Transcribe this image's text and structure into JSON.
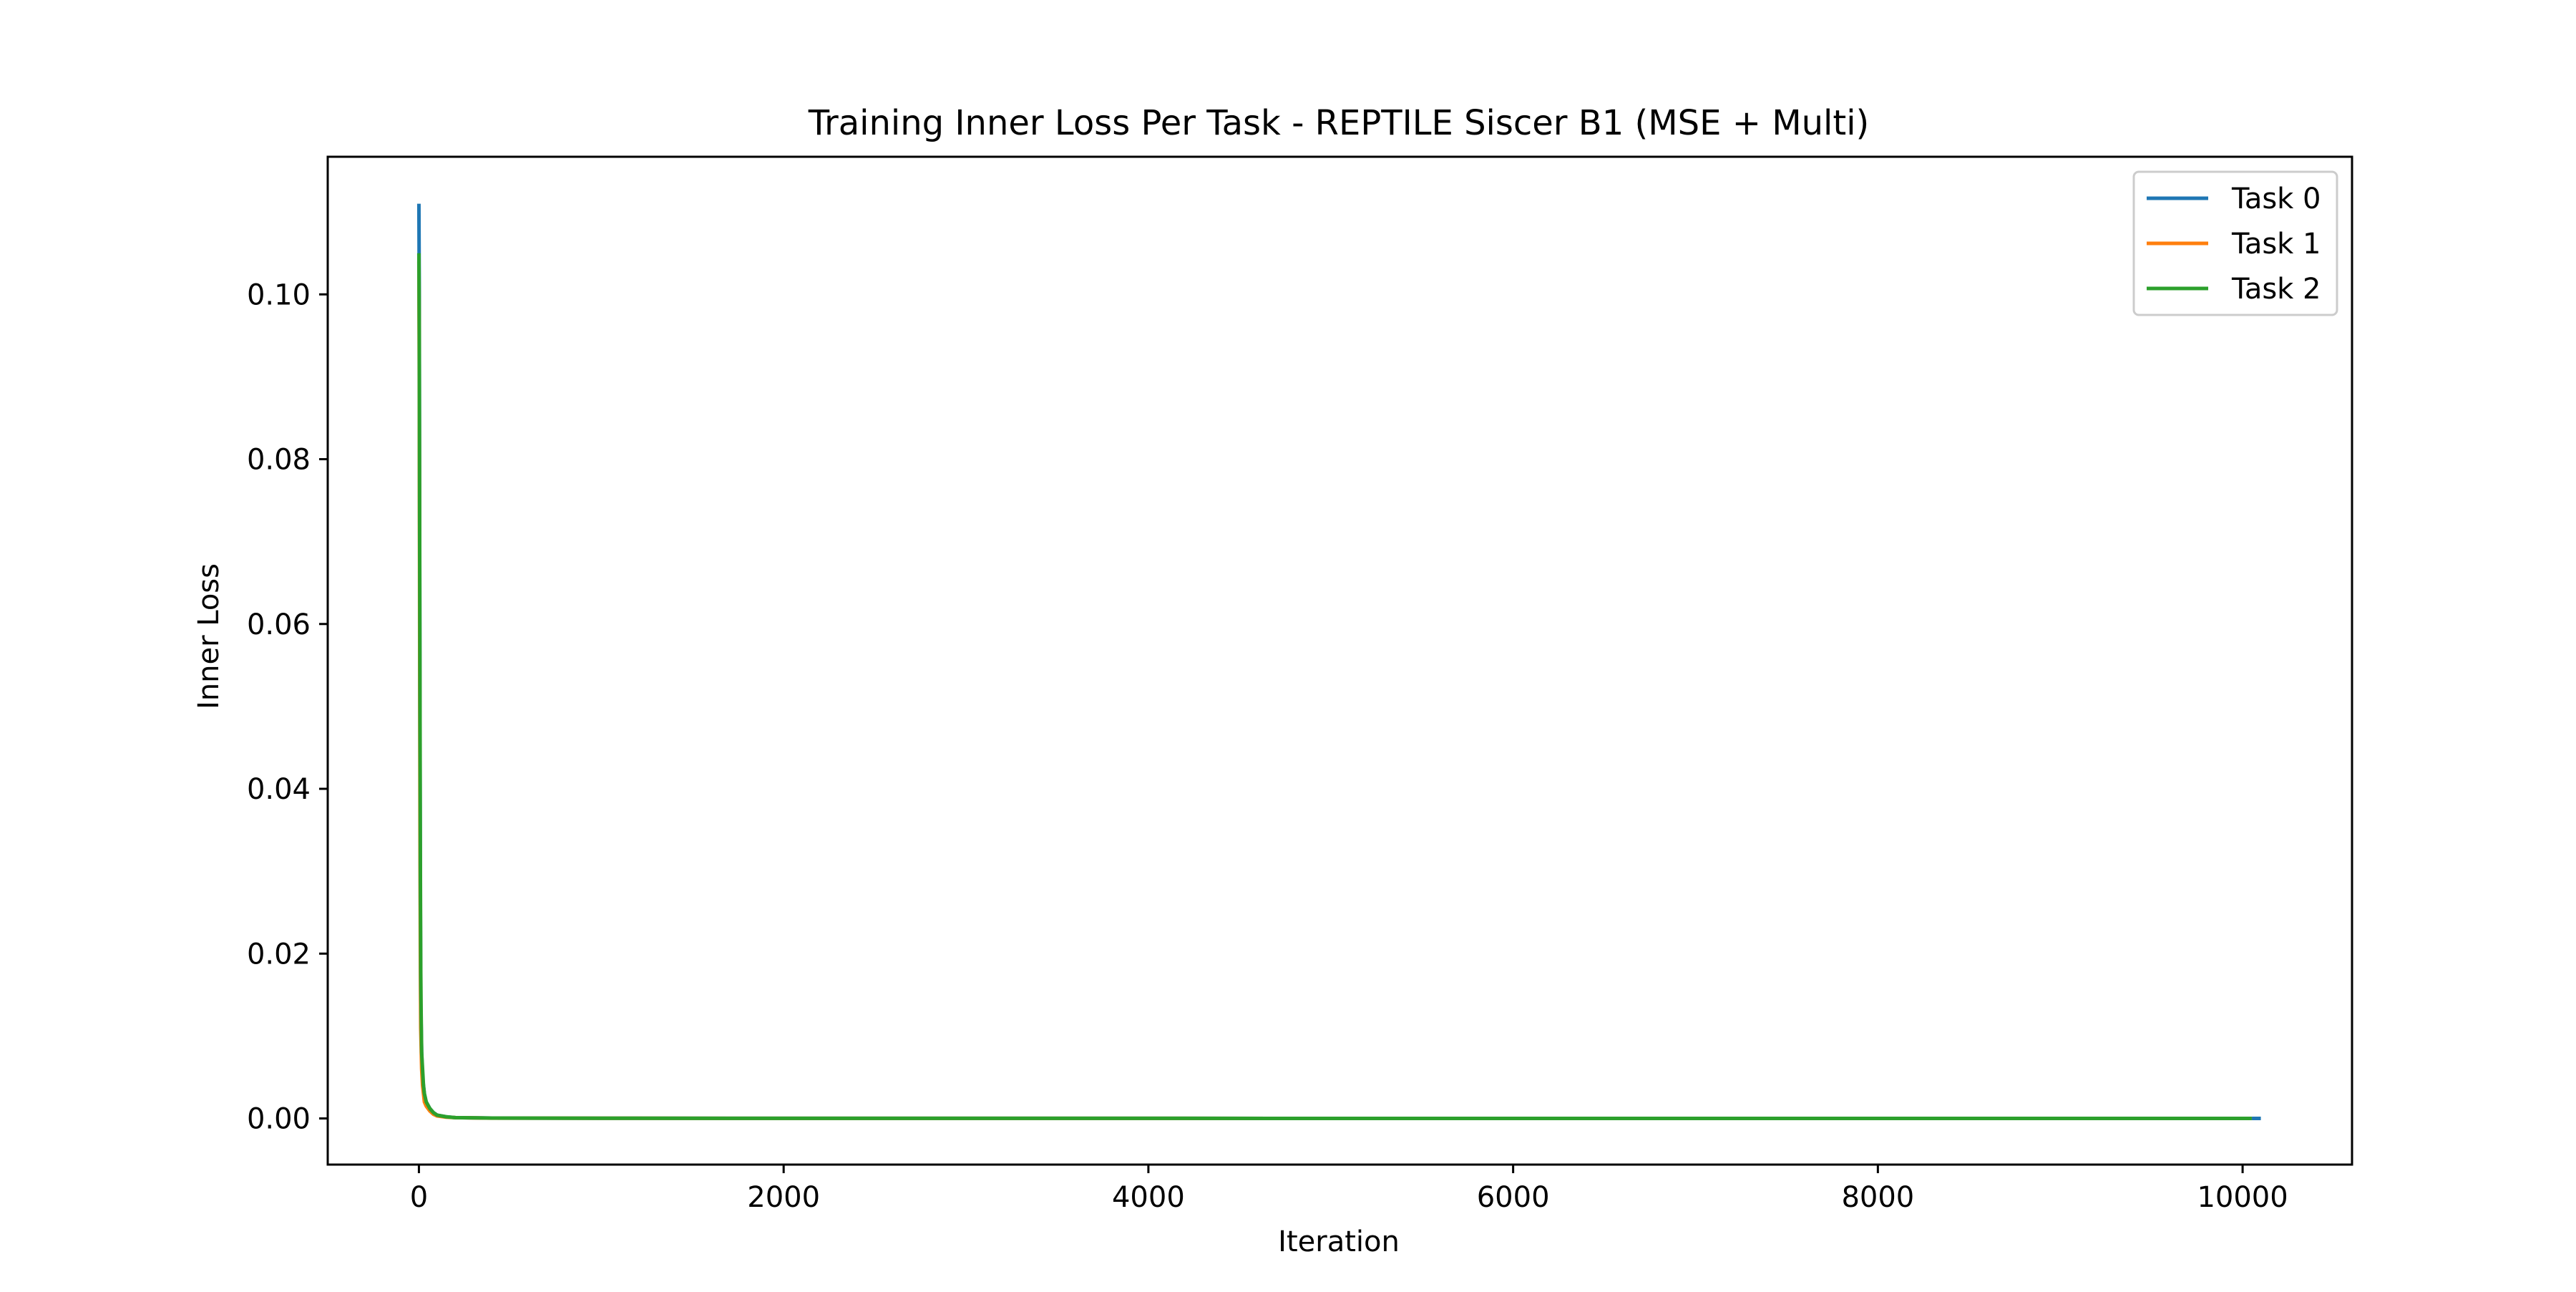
{
  "chart_data": {
    "type": "line",
    "title": "Training Inner Loss Per Task - REPTILE Siscer B1 (MSE + Multi)",
    "xlabel": "Iteration",
    "ylabel": "Inner Loss",
    "xlim": [
      -500,
      10600
    ],
    "ylim": [
      -0.0056,
      0.1167
    ],
    "xticks": [
      0,
      2000,
      4000,
      6000,
      8000,
      10000
    ],
    "xtick_labels": [
      "0",
      "2000",
      "4000",
      "6000",
      "8000",
      "10000"
    ],
    "yticks": [
      0.0,
      0.02,
      0.04,
      0.06,
      0.08,
      0.1
    ],
    "ytick_labels": [
      "0.00",
      "0.02",
      "0.04",
      "0.06",
      "0.08",
      "0.10"
    ],
    "grid": false,
    "legend_position": "top-right",
    "series": [
      {
        "name": "Task 0",
        "color": "#1f77b4",
        "x": [
          0,
          2,
          4,
          6,
          8,
          10,
          15,
          20,
          30,
          40,
          60,
          80,
          100,
          150,
          200,
          400,
          1000,
          3000,
          6000,
          10100
        ],
        "y": [
          0.111,
          0.1,
          0.07,
          0.045,
          0.026,
          0.014,
          0.008,
          0.005,
          0.003,
          0.002,
          0.0012,
          0.0007,
          0.0004,
          0.0002,
          0.0001,
          5e-05,
          2e-05,
          1e-05,
          5e-06,
          0.0
        ]
      },
      {
        "name": "Task 1",
        "color": "#ff7f0e",
        "x": [
          0,
          2,
          4,
          6,
          8,
          10,
          15,
          20,
          30,
          40,
          60,
          80,
          100,
          150,
          200,
          400,
          1000,
          3000,
          6000,
          10050
        ],
        "y": [
          0.104,
          0.09,
          0.06,
          0.035,
          0.02,
          0.011,
          0.006,
          0.004,
          0.002,
          0.0015,
          0.0009,
          0.0005,
          0.0003,
          0.00015,
          0.0001,
          4e-05,
          2e-05,
          1e-05,
          5e-06,
          0.0
        ]
      },
      {
        "name": "Task 2",
        "color": "#2ca02c",
        "x": [
          0,
          2,
          4,
          6,
          8,
          10,
          12,
          15,
          20,
          25,
          30,
          40,
          60,
          80,
          100,
          150,
          200,
          400,
          1000,
          3000,
          6000,
          10050
        ],
        "y": [
          0.105,
          0.095,
          0.072,
          0.05,
          0.03,
          0.018,
          0.013,
          0.008,
          0.006,
          0.004,
          0.003,
          0.002,
          0.0012,
          0.0007,
          0.0004,
          0.0002,
          0.0001,
          5e-05,
          2e-05,
          1e-05,
          5e-06,
          0.0
        ]
      }
    ]
  }
}
